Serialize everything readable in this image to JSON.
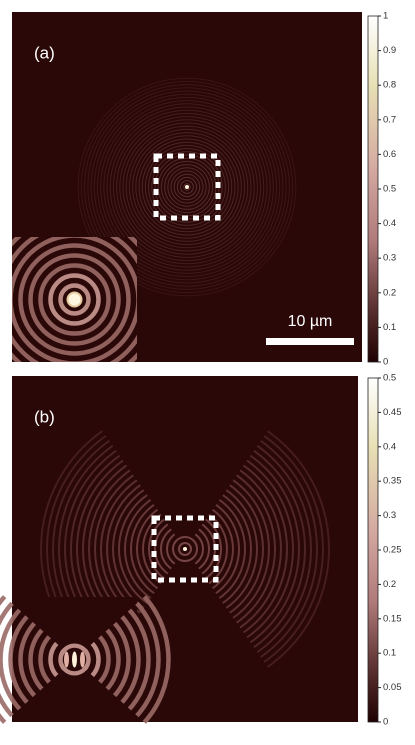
{
  "chart_data": [
    {
      "type": "heatmap",
      "panel_label": "(a)",
      "scale_bar_label": "10 µm",
      "clim": [
        0,
        1
      ],
      "cticks": [
        0,
        0.1,
        0.2,
        0.3,
        0.4,
        0.5,
        0.6,
        0.7,
        0.8,
        0.9,
        1
      ]
    },
    {
      "type": "heatmap",
      "panel_label": "(b)",
      "clim": [
        0,
        0.5
      ],
      "cticks": [
        0,
        0.05,
        0.1,
        0.15,
        0.2,
        0.25,
        0.3,
        0.35,
        0.4,
        0.45,
        0.5
      ]
    }
  ]
}
